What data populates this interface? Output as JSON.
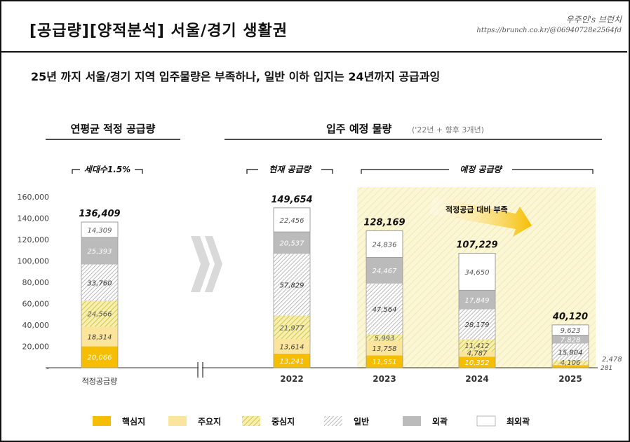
{
  "header": {
    "title": "[공급량][양적분석] 서울/경기 생활권",
    "author": "우주인's 브런치",
    "url": "https://brunch.co.kr/@06940728e2564fd",
    "subtitle": "25년 까지 서울/경기 지역 입주물량은 부족하나, 일반 이하 입지는 24년까지 공급과잉"
  },
  "sections": {
    "left_title": "연평균 적정 공급량",
    "right_title": "입주 예정 물량",
    "right_note": "('22년 + 향후 3개년)",
    "bracket_household": "세대수1.5%",
    "bracket_current": "현재 공급량",
    "bracket_planned": "예정 공급량",
    "arrow_label": "적정공급 대비 부족"
  },
  "colors": {
    "core": "#F6BE00",
    "major": "#FBE49B",
    "mid": "#E9DD6A",
    "general": "#CCCCCC",
    "outer": "#BBBBBB",
    "outermost": "#FFFFFF",
    "highlight": "#FBF5D0",
    "arrow": "#F6BE00"
  },
  "chart_data": {
    "type": "bar",
    "stacked": true,
    "categories": [
      "적정공급량",
      "2022",
      "2023",
      "2024",
      "2025"
    ],
    "series": [
      {
        "name": "핵심지",
        "values": [
          20066,
          13241,
          11551,
          10352,
          2478
        ]
      },
      {
        "name": "주요지",
        "values": [
          18314,
          13614,
          13758,
          4787,
          281
        ]
      },
      {
        "name": "중심지",
        "values": [
          24566,
          21977,
          5993,
          11412,
          4106
        ]
      },
      {
        "name": "일반",
        "values": [
          33760,
          57829,
          47564,
          28179,
          15804
        ]
      },
      {
        "name": "외곽",
        "values": [
          25393,
          20537,
          24467,
          17849,
          7828
        ]
      },
      {
        "name": "최외곽",
        "values": [
          14309,
          22456,
          24836,
          34650,
          9623
        ]
      }
    ],
    "totals": [
      136409,
      149654,
      128169,
      107229,
      40120
    ],
    "total_labels": [
      "136,409",
      "149,654",
      "128,169",
      "107,229",
      "40,120"
    ],
    "segment_labels": [
      [
        "20,066",
        "18,314",
        "24,566",
        "33,760",
        "25,393",
        "14,309"
      ],
      [
        "13,241",
        "13,614",
        "21,977",
        "57,829",
        "20,537",
        "22,456"
      ],
      [
        "11,551",
        "13,758",
        "5,993",
        "47,564",
        "24,467",
        "24,836"
      ],
      [
        "10,352",
        "4,787",
        "11,412",
        "28,179",
        "17,849",
        "34,650"
      ],
      [
        "2,478",
        "281",
        "4,106",
        "15,804",
        "7,828",
        "9,623"
      ]
    ],
    "y_ticks": [
      0,
      20000,
      40000,
      60000,
      80000,
      100000,
      120000,
      140000,
      160000
    ],
    "y_tick_labels": [
      "-",
      "20,000",
      "40,000",
      "60,000",
      "80,000",
      "100,000",
      "120,000",
      "140,000",
      "160,000"
    ],
    "ylim": [
      0,
      160000
    ],
    "legend": [
      "핵심지",
      "주요지",
      "중심지",
      "일반",
      "외곽",
      "최외곽"
    ],
    "legend_position": "bottom"
  }
}
